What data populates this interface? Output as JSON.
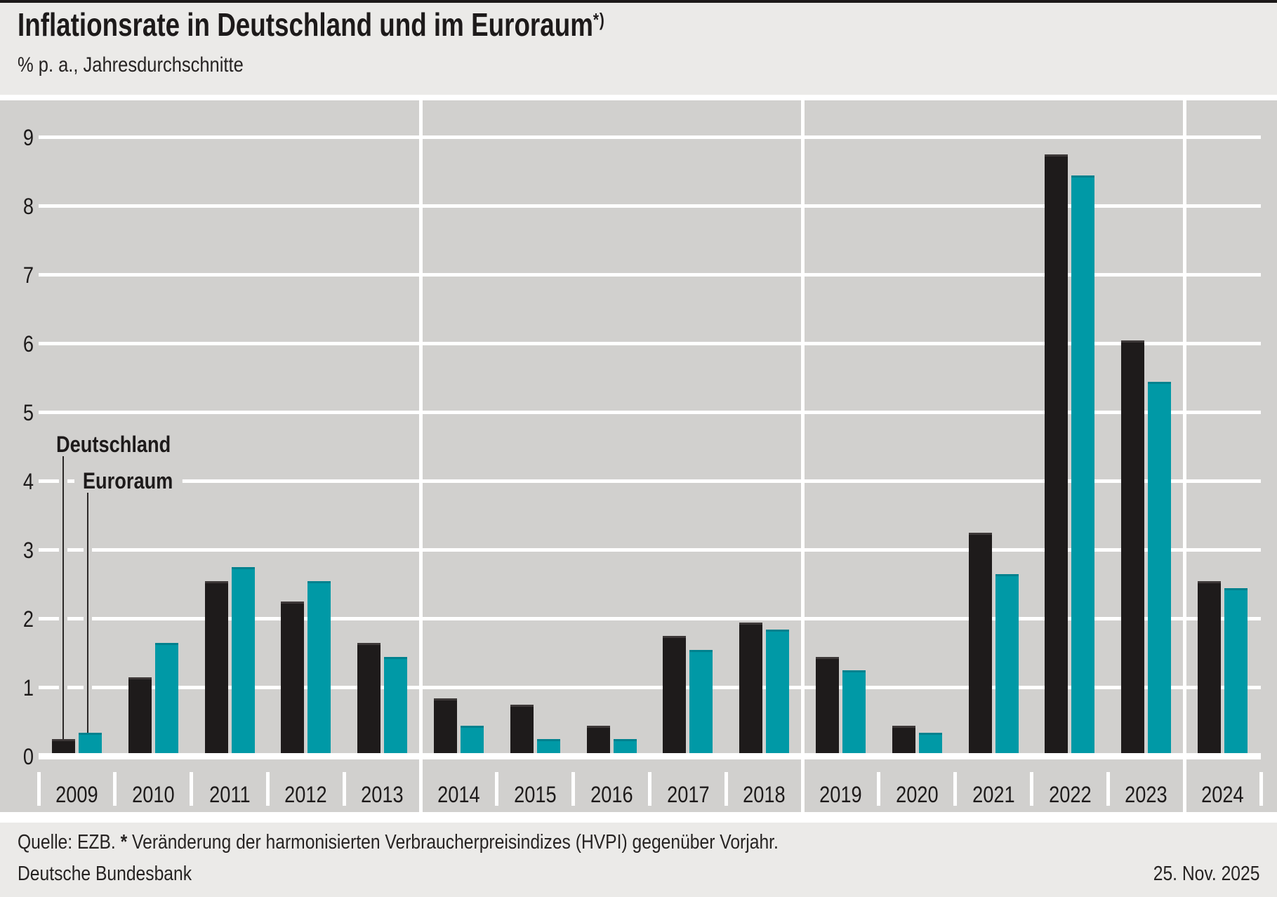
{
  "header": {
    "title": "Inflationsrate in Deutschland und im Euroraum",
    "title_footnote": "*)",
    "subtitle": "% p. a., Jahresdurchschnitte"
  },
  "chart_data": {
    "type": "bar",
    "title": "Inflationsrate in Deutschland und im Euroraum*)",
    "subtitle": "% p. a., Jahresdurchschnitte",
    "categories": [
      "2009",
      "2010",
      "2011",
      "2012",
      "2013",
      "2014",
      "2015",
      "2016",
      "2017",
      "2018",
      "2019",
      "2020",
      "2021",
      "2022",
      "2023",
      "2024"
    ],
    "series": [
      {
        "name": "Deutschland",
        "color": "#1e1b1b",
        "cap_color": "#3d3838",
        "values": [
          0.2,
          1.1,
          2.5,
          2.2,
          1.6,
          0.8,
          0.7,
          0.4,
          1.7,
          1.9,
          1.4,
          0.4,
          3.2,
          8.7,
          6.0,
          2.5
        ]
      },
      {
        "name": "Euroraum",
        "color": "#0099a6",
        "cap_color": "#00818e",
        "values": [
          0.3,
          1.6,
          2.7,
          2.5,
          1.4,
          0.4,
          0.2,
          0.2,
          1.5,
          1.8,
          1.2,
          0.3,
          2.6,
          8.4,
          5.4,
          2.4
        ]
      }
    ],
    "ylim": [
      0,
      9
    ],
    "yticks": [
      0,
      1,
      2,
      3,
      4,
      5,
      6,
      7,
      8,
      9
    ],
    "ylabel": "",
    "xlabel": "",
    "grid": "horizontal-white-on-gray",
    "group_separators_after_categories": [
      "2013",
      "2018",
      "2023"
    ],
    "legend": {
      "style": "annotated-leader-lines-on-first-bars",
      "entries": [
        "Deutschland",
        "Euroraum"
      ]
    }
  },
  "footer": {
    "source_prefix": "Quelle: EZB. ",
    "footnote_marker": "*",
    "footnote_text": " Veränderung der harmonisierten Verbraucherpreisindizes (HVPI) gegenüber Vorjahr.",
    "publisher": "Deutsche Bundesbank",
    "date": "25. Nov. 2025"
  },
  "colors": {
    "deutschland": "#1e1b1b",
    "euroraum": "#0099a6",
    "plot_background": "#d1d0ce",
    "page_background": "#ebeae8",
    "gridline": "#ffffff",
    "text": "#1d1a1a",
    "top_rule": "#1c1919"
  }
}
